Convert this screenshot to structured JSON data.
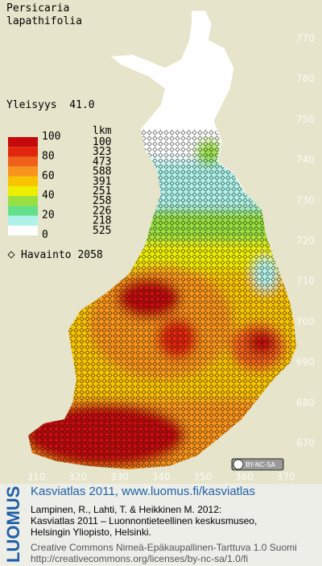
{
  "map": {
    "title": [
      "Persicaria",
      "lapathifolia"
    ],
    "frequency": "Yleisyys  41.0",
    "legend": {
      "count_header": "lkm",
      "scale_labels": [
        "100",
        "80",
        "60",
        "40",
        "20",
        "0"
      ],
      "bands": [
        {
          "color": "#c40a0a",
          "count": "100"
        },
        {
          "color": "#e2260e",
          "count": "323"
        },
        {
          "color": "#f0601a",
          "count": "473"
        },
        {
          "color": "#f7941e",
          "count": "588"
        },
        {
          "color": "#f8c400",
          "count": "391"
        },
        {
          "color": "#eeee00",
          "count": "251"
        },
        {
          "color": "#98e040",
          "count": "258"
        },
        {
          "color": "#64e08a",
          "count": "226"
        },
        {
          "color": "#aef2ea",
          "count": "218"
        },
        {
          "color": "#ffffff",
          "count": "525"
        }
      ],
      "observations": "Havainto 2058"
    },
    "yticks": [
      770,
      760,
      750,
      740,
      730,
      720,
      710,
      700,
      690,
      680,
      670
    ],
    "xticks": [
      310,
      320,
      330,
      340,
      350,
      360,
      370
    ],
    "license_badge": "BY-NC-SA"
  },
  "footer": {
    "logo": "LUOMUS",
    "heading": "Kasviatlas 2011, www.luomus.fi/kasviatlas",
    "citation": [
      "Lampinen, R., Lahti, T. & Heikkinen M. 2012:",
      "Kasviatlas 2011 – Luonnontieteellinen keskusmuseo,",
      "Helsingin Yliopisto, Helsinki."
    ],
    "license": [
      "Creative Commons Nimeä-Epäkaupallinen-Tarttuva 1.0 Suomi",
      "http://creativecommons.org/licenses/by-nc-sa/1.0/fi"
    ]
  }
}
